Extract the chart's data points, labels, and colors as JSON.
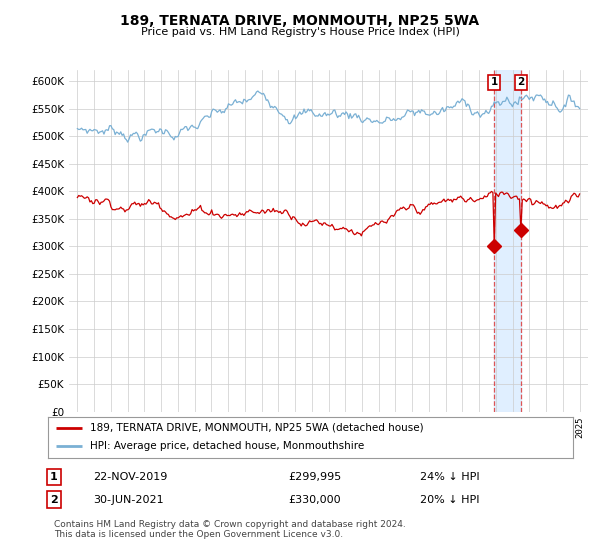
{
  "title": "189, TERNATA DRIVE, MONMOUTH, NP25 5WA",
  "subtitle": "Price paid vs. HM Land Registry's House Price Index (HPI)",
  "legend_label_red": "189, TERNATA DRIVE, MONMOUTH, NP25 5WA (detached house)",
  "legend_label_blue": "HPI: Average price, detached house, Monmouthshire",
  "transaction1_date": "22-NOV-2019",
  "transaction1_price": "£299,995",
  "transaction1_pct": "24% ↓ HPI",
  "transaction2_date": "30-JUN-2021",
  "transaction2_price": "£330,000",
  "transaction2_pct": "20% ↓ HPI",
  "footer": "Contains HM Land Registry data © Crown copyright and database right 2024.\nThis data is licensed under the Open Government Licence v3.0.",
  "red_color": "#cc0000",
  "blue_color": "#7ab0d4",
  "highlight_color": "#ddeeff",
  "ylim": [
    0,
    620000
  ],
  "yticks": [
    0,
    50000,
    100000,
    150000,
    200000,
    250000,
    300000,
    350000,
    400000,
    450000,
    500000,
    550000,
    600000
  ],
  "transaction1_year": 2019.9,
  "transaction2_year": 2021.5,
  "transaction1_price_val": 299995,
  "transaction2_price_val": 330000
}
